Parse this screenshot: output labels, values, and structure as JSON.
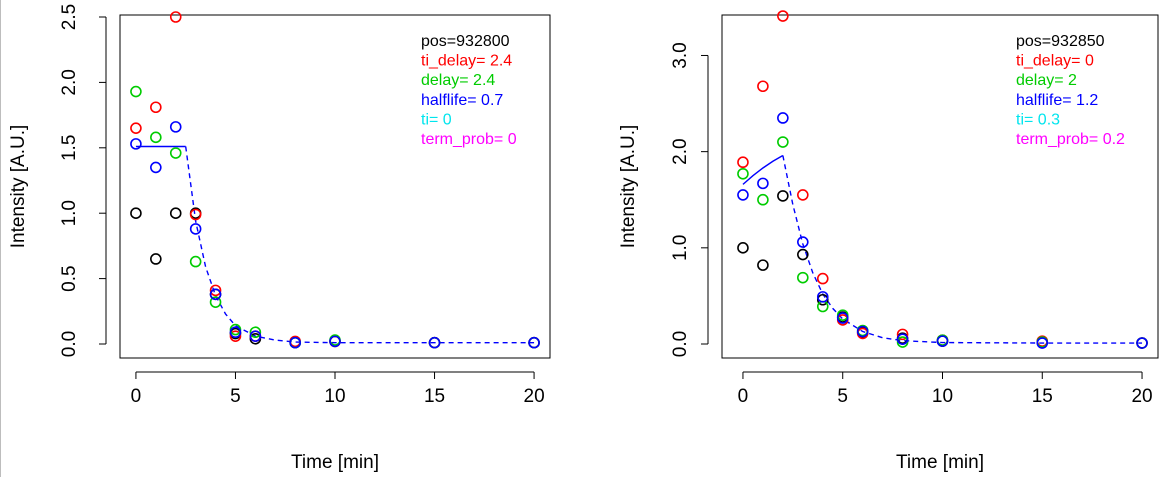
{
  "colors": {
    "black": "#000000",
    "red": "#ff0000",
    "green": "#00cc00",
    "blue": "#0000ff",
    "cyan": "#00e5ee",
    "magenta": "#ff00ff",
    "fit": "#0000ff"
  },
  "chart_data": [
    {
      "type": "scatter",
      "xlabel": "Time [min]",
      "ylabel": "Intensity [A.U.]",
      "xlim": [
        0,
        20
      ],
      "ylim": [
        0,
        2.5
      ],
      "xticks": [
        {
          "v": 0,
          "label": "0"
        },
        {
          "v": 5,
          "label": "5"
        },
        {
          "v": 10,
          "label": "10"
        },
        {
          "v": 15,
          "label": "15"
        },
        {
          "v": 20,
          "label": "20"
        }
      ],
      "yticks": [
        {
          "v": 0,
          "label": "0.0"
        },
        {
          "v": 0.5,
          "label": "0.5"
        },
        {
          "v": 1,
          "label": "1.0"
        },
        {
          "v": 1.5,
          "label": "1.5"
        },
        {
          "v": 2,
          "label": "2.0"
        },
        {
          "v": 2.5,
          "label": "2.5"
        }
      ],
      "grid": false,
      "legend_position": "top-right",
      "annotations": [
        {
          "text": "pos=932800",
          "color": "black"
        },
        {
          "text": "ti_delay= 2.4",
          "color": "red"
        },
        {
          "text": "delay= 2.4",
          "color": "green"
        },
        {
          "text": "halflife= 0.7",
          "color": "blue"
        },
        {
          "text": "ti= 0",
          "color": "cyan"
        },
        {
          "text": "term_prob= 0",
          "color": "magenta"
        }
      ],
      "series": [
        {
          "color": "black",
          "x": [
            0,
            1,
            2,
            3,
            4,
            5,
            6,
            8,
            10,
            15,
            20
          ],
          "y": [
            1.0,
            0.65,
            1.0,
            1.0,
            0.38,
            0.08,
            0.04,
            0.01,
            0.02,
            0.01,
            0.01
          ]
        },
        {
          "color": "red",
          "x": [
            0,
            1,
            2,
            3,
            4,
            5,
            6,
            8,
            10,
            15,
            20
          ],
          "y": [
            1.65,
            1.81,
            2.5,
            0.99,
            0.41,
            0.06,
            0.06,
            0.02,
            0.02,
            0.01,
            0.01
          ]
        },
        {
          "color": "green",
          "x": [
            0,
            1,
            2,
            3,
            4,
            5,
            6,
            8,
            10,
            15,
            20
          ],
          "y": [
            1.93,
            1.58,
            1.46,
            0.63,
            0.32,
            0.11,
            0.09,
            0.01,
            0.03,
            0.01,
            0.01
          ]
        },
        {
          "color": "blue",
          "x": [
            0,
            1,
            2,
            3,
            4,
            5,
            6,
            8,
            10,
            15,
            20
          ],
          "y": [
            1.53,
            1.35,
            1.66,
            0.88,
            0.38,
            0.09,
            0.06,
            0.01,
            0.02,
            0.01,
            0.01
          ]
        }
      ],
      "fit_solid": {
        "x": [
          0,
          0.5,
          1,
          1.5,
          2,
          2.5
        ],
        "y": [
          1.51,
          1.51,
          1.51,
          1.51,
          1.51,
          1.51
        ]
      },
      "fit_dashed": {
        "x": [
          2.5,
          3,
          3.5,
          4,
          4.5,
          5,
          6,
          7,
          8,
          10,
          15,
          20
        ],
        "y": [
          1.51,
          0.94,
          0.59,
          0.37,
          0.23,
          0.14,
          0.06,
          0.03,
          0.015,
          0.01,
          0.01,
          0.01
        ]
      }
    },
    {
      "type": "scatter",
      "xlabel": "Time [min]",
      "ylabel": "Intensity [A.U.]",
      "xlim": [
        0,
        20
      ],
      "ylim": [
        0,
        3.4
      ],
      "xticks": [
        {
          "v": 0,
          "label": "0"
        },
        {
          "v": 5,
          "label": "5"
        },
        {
          "v": 10,
          "label": "10"
        },
        {
          "v": 15,
          "label": "15"
        },
        {
          "v": 20,
          "label": "20"
        }
      ],
      "yticks": [
        {
          "v": 0,
          "label": "0.0"
        },
        {
          "v": 1,
          "label": "1.0"
        },
        {
          "v": 2,
          "label": "2.0"
        },
        {
          "v": 3,
          "label": "3.0"
        }
      ],
      "grid": false,
      "legend_position": "top-right",
      "annotations": [
        {
          "text": "pos=932850",
          "color": "black"
        },
        {
          "text": "ti_delay= 0",
          "color": "red"
        },
        {
          "text": "delay= 2",
          "color": "green"
        },
        {
          "text": "halflife= 1.2",
          "color": "blue"
        },
        {
          "text": "ti= 0.3",
          "color": "cyan"
        },
        {
          "text": "term_prob= 0.2",
          "color": "magenta"
        }
      ],
      "series": [
        {
          "color": "black",
          "x": [
            0,
            1,
            2,
            3,
            4,
            5,
            6,
            8,
            10,
            15,
            20
          ],
          "y": [
            1.0,
            0.82,
            1.54,
            0.93,
            0.46,
            0.28,
            0.12,
            0.06,
            0.03,
            0.02,
            0.01
          ]
        },
        {
          "color": "red",
          "x": [
            0,
            1,
            2,
            3,
            4,
            5,
            6,
            8,
            10,
            15,
            20
          ],
          "y": [
            1.89,
            2.68,
            3.41,
            1.55,
            0.68,
            0.25,
            0.11,
            0.1,
            0.04,
            0.03,
            0.01
          ]
        },
        {
          "color": "green",
          "x": [
            0,
            1,
            2,
            3,
            4,
            5,
            6,
            8,
            10,
            15,
            20
          ],
          "y": [
            1.77,
            1.5,
            2.1,
            0.69,
            0.39,
            0.3,
            0.14,
            0.02,
            0.04,
            0.02,
            0.01
          ]
        },
        {
          "color": "blue",
          "x": [
            0,
            1,
            2,
            3,
            4,
            5,
            6,
            8,
            10,
            15,
            20
          ],
          "y": [
            1.55,
            1.67,
            2.35,
            1.06,
            0.49,
            0.27,
            0.13,
            0.05,
            0.03,
            0.01,
            0.01
          ]
        }
      ],
      "fit_solid": {
        "x": [
          0,
          0.5,
          1,
          1.5,
          2
        ],
        "y": [
          1.66,
          1.75,
          1.83,
          1.9,
          1.96
        ]
      },
      "fit_dashed": {
        "x": [
          2,
          2.5,
          3,
          3.5,
          4,
          4.5,
          5,
          6,
          7,
          8,
          10,
          15,
          20
        ],
        "y": [
          1.96,
          1.45,
          1.04,
          0.74,
          0.52,
          0.37,
          0.26,
          0.13,
          0.065,
          0.035,
          0.015,
          0.01,
          0.01
        ]
      }
    }
  ]
}
